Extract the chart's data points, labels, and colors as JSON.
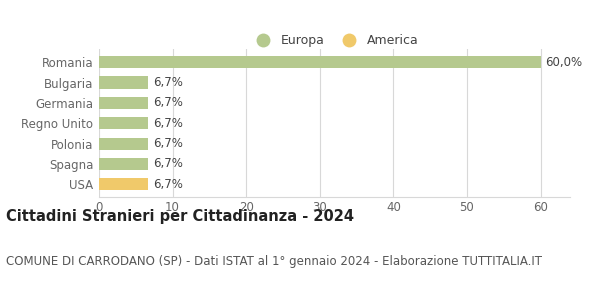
{
  "categories": [
    "USA",
    "Spagna",
    "Polonia",
    "Regno Unito",
    "Germania",
    "Bulgaria",
    "Romania"
  ],
  "values": [
    6.7,
    6.7,
    6.7,
    6.7,
    6.7,
    6.7,
    60.0
  ],
  "colors": [
    "#f0c96a",
    "#b5c98e",
    "#b5c98e",
    "#b5c98e",
    "#b5c98e",
    "#b5c98e",
    "#b5c98e"
  ],
  "labels": [
    "6,7%",
    "6,7%",
    "6,7%",
    "6,7%",
    "6,7%",
    "6,7%",
    "60,0%"
  ],
  "xlim": [
    0,
    64
  ],
  "xticks": [
    0,
    10,
    20,
    30,
    40,
    50,
    60
  ],
  "title": "Cittadini Stranieri per Cittadinanza - 2024",
  "subtitle": "COMUNE DI CARRODANO (SP) - Dati ISTAT al 1° gennaio 2024 - Elaborazione TUTTITALIA.IT",
  "legend_labels": [
    "Europa",
    "America"
  ],
  "legend_colors": [
    "#b5c98e",
    "#f0c96a"
  ],
  "background_color": "#ffffff",
  "grid_color": "#d8d8d8",
  "bar_height": 0.6,
  "label_fontsize": 8.5,
  "title_fontsize": 10.5,
  "subtitle_fontsize": 8.5,
  "tick_fontsize": 8.5,
  "legend_fontsize": 9
}
